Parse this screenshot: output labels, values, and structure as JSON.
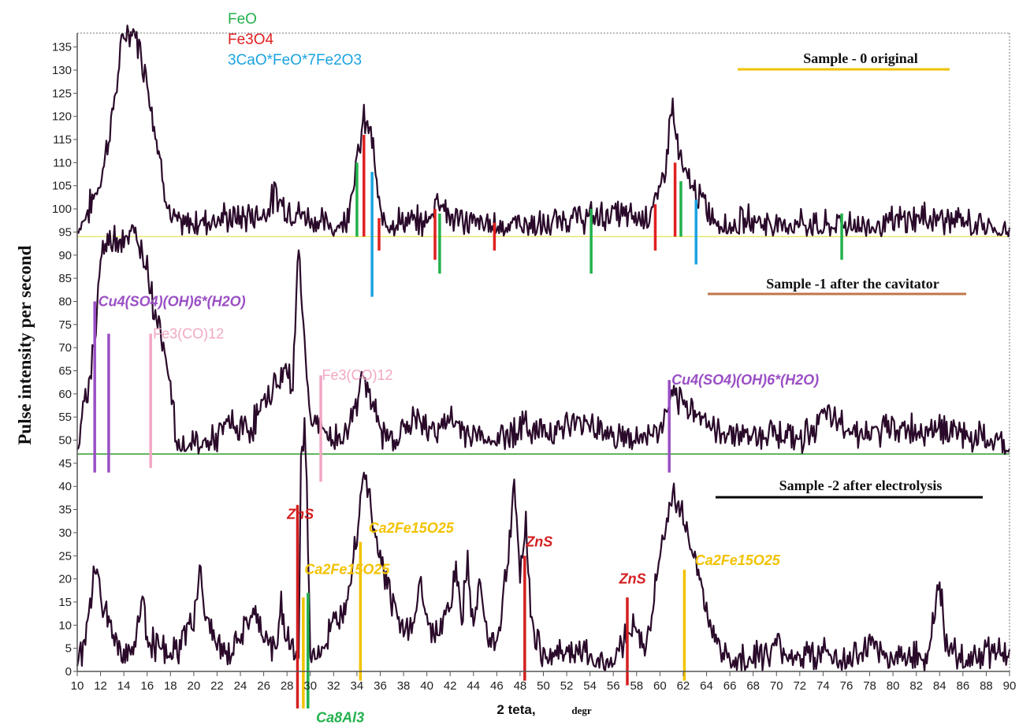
{
  "chart_data": {
    "type": "line",
    "xlabel": "2 teta,",
    "xlabel_unit": "degr",
    "ylabel": "Pulse intensity per second",
    "xlim": [
      10,
      90
    ],
    "ylim": [
      0,
      138
    ],
    "x_ticks": [
      10,
      12,
      14,
      16,
      18,
      20,
      22,
      24,
      26,
      28,
      30,
      32,
      34,
      36,
      38,
      40,
      42,
      44,
      46,
      48,
      50,
      52,
      54,
      56,
      58,
      60,
      62,
      64,
      66,
      68,
      70,
      72,
      74,
      76,
      78,
      80,
      82,
      84,
      86,
      88,
      90
    ],
    "x_tick_labels": [
      "10",
      "12",
      "14",
      "16",
      "18",
      "20",
      "22",
      "24",
      "26",
      "28",
      "30",
      "32",
      "34",
      "36",
      "38",
      "40",
      "42",
      "44",
      "46",
      "48",
      "50",
      "52",
      "54",
      "56",
      "58",
      "60",
      "62",
      "64",
      "66",
      "68",
      "70",
      "72",
      "74",
      "76",
      "78",
      "80",
      "82",
      "84",
      "86",
      "88",
      "90"
    ],
    "y_ticks": [
      0,
      5,
      10,
      15,
      20,
      25,
      30,
      35,
      40,
      45,
      50,
      55,
      60,
      65,
      70,
      75,
      80,
      85,
      90,
      95,
      100,
      105,
      110,
      115,
      120,
      125,
      130,
      135
    ],
    "y_tick_labels": [
      "0",
      "5",
      "10",
      "15",
      "20",
      "25",
      "30",
      "35",
      "40",
      "45",
      "50",
      "55",
      "60",
      "65",
      "70",
      "75",
      "80",
      "85",
      "90",
      "95",
      "100",
      "105",
      "110",
      "115",
      "120",
      "125",
      "130",
      "135"
    ],
    "grid": false,
    "legend": {
      "position": "top-center",
      "entries": [
        {
          "label": "FeO",
          "color": "#22b14c"
        },
        {
          "label": "Fe3O4",
          "color": "#e02020"
        },
        {
          "label": "3CaO*FeO*7Fe2O3",
          "color": "#1aa3e0"
        }
      ]
    },
    "series": [
      {
        "name": "Sample - 0 original",
        "color": "#2a0a2a",
        "baseline": 94,
        "baseline_color": "#e8e870",
        "label_color": "#f2c200",
        "points": [
          [
            10,
            95
          ],
          [
            11,
            100
          ],
          [
            12,
            106
          ],
          [
            13,
            120
          ],
          [
            14,
            138
          ],
          [
            15,
            138
          ],
          [
            16,
            128
          ],
          [
            17,
            112
          ],
          [
            18,
            98
          ],
          [
            19,
            96
          ],
          [
            20,
            97
          ],
          [
            22,
            98
          ],
          [
            24,
            98
          ],
          [
            26,
            99
          ],
          [
            27,
            103
          ],
          [
            28,
            100
          ],
          [
            30,
            98
          ],
          [
            32,
            96
          ],
          [
            33,
            97
          ],
          [
            34,
            110
          ],
          [
            34.6,
            119
          ],
          [
            35.2,
            117
          ],
          [
            36,
            98
          ],
          [
            38,
            97
          ],
          [
            40,
            97
          ],
          [
            41,
            103
          ],
          [
            42,
            98
          ],
          [
            44,
            97
          ],
          [
            46,
            96
          ],
          [
            48,
            97
          ],
          [
            50,
            96
          ],
          [
            52,
            98
          ],
          [
            54,
            98
          ],
          [
            56,
            99
          ],
          [
            58,
            98
          ],
          [
            59,
            99
          ],
          [
            60,
            103
          ],
          [
            60.6,
            112
          ],
          [
            61,
            123
          ],
          [
            61.6,
            112
          ],
          [
            62,
            108
          ],
          [
            63,
            104
          ],
          [
            64,
            100
          ],
          [
            65,
            97
          ],
          [
            66,
            96
          ],
          [
            68,
            98
          ],
          [
            70,
            96
          ],
          [
            72,
            97
          ],
          [
            74,
            96
          ],
          [
            76,
            97
          ],
          [
            78,
            96
          ],
          [
            80,
            97
          ],
          [
            82,
            98
          ],
          [
            84,
            98
          ],
          [
            86,
            97
          ],
          [
            88,
            96
          ],
          [
            89,
            95
          ],
          [
            90,
            94
          ]
        ],
        "markers": [
          {
            "x": 34.0,
            "from": 94,
            "to": 110,
            "color": "#22b14c"
          },
          {
            "x": 34.6,
            "from": 94,
            "to": 116,
            "color": "#e02020"
          },
          {
            "x": 35.3,
            "from": 81,
            "to": 108,
            "color": "#1aa3e0"
          },
          {
            "x": 35.9,
            "from": 91,
            "to": 98,
            "color": "#e02020"
          },
          {
            "x": 40.7,
            "from": 89,
            "to": 100,
            "color": "#e02020"
          },
          {
            "x": 41.1,
            "from": 86,
            "to": 99,
            "color": "#22b14c"
          },
          {
            "x": 45.8,
            "from": 91,
            "to": 97,
            "color": "#e02020"
          },
          {
            "x": 54.1,
            "from": 86,
            "to": 100,
            "color": "#22b14c"
          },
          {
            "x": 59.6,
            "from": 91,
            "to": 101,
            "color": "#e02020"
          },
          {
            "x": 61.3,
            "from": 94,
            "to": 110,
            "color": "#e02020"
          },
          {
            "x": 61.8,
            "from": 94,
            "to": 106,
            "color": "#22b14c"
          },
          {
            "x": 63.1,
            "from": 88,
            "to": 102,
            "color": "#1aa3e0"
          },
          {
            "x": 75.6,
            "from": 89,
            "to": 99,
            "color": "#22b14c"
          }
        ]
      },
      {
        "name": "Sample -1 after the cavitator",
        "color": "#2a0a2a",
        "baseline": 47,
        "baseline_color": "#2e9e2e",
        "label_color": "#c0774a",
        "points": [
          [
            10,
            48
          ],
          [
            10.5,
            55
          ],
          [
            11,
            63
          ],
          [
            11.5,
            72
          ],
          [
            12,
            90
          ],
          [
            13,
            94
          ],
          [
            14,
            94
          ],
          [
            15,
            94
          ],
          [
            16,
            88
          ],
          [
            16.5,
            80
          ],
          [
            17,
            75
          ],
          [
            17.5,
            70
          ],
          [
            18,
            62
          ],
          [
            18.5,
            50
          ],
          [
            19,
            48
          ],
          [
            20,
            49
          ],
          [
            22,
            50
          ],
          [
            23,
            54
          ],
          [
            24,
            52
          ],
          [
            25,
            53
          ],
          [
            26,
            58
          ],
          [
            27,
            62
          ],
          [
            28,
            65
          ],
          [
            28.5,
            62
          ],
          [
            29,
            93
          ],
          [
            29.5,
            70
          ],
          [
            30,
            55
          ],
          [
            31,
            52
          ],
          [
            32,
            50
          ],
          [
            33,
            51
          ],
          [
            34,
            58
          ],
          [
            34.5,
            66
          ],
          [
            35,
            60
          ],
          [
            36,
            52
          ],
          [
            37,
            50
          ],
          [
            38,
            52
          ],
          [
            39,
            55
          ],
          [
            40,
            52
          ],
          [
            42,
            54
          ],
          [
            44,
            51
          ],
          [
            46,
            50
          ],
          [
            48,
            53
          ],
          [
            50,
            52
          ],
          [
            52,
            53
          ],
          [
            54,
            54
          ],
          [
            56,
            51
          ],
          [
            58,
            50
          ],
          [
            60,
            52
          ],
          [
            61,
            59
          ],
          [
            62,
            57
          ],
          [
            63,
            57
          ],
          [
            64,
            54
          ],
          [
            65,
            51
          ],
          [
            66,
            52
          ],
          [
            68,
            51
          ],
          [
            70,
            52
          ],
          [
            72,
            50
          ],
          [
            74,
            55
          ],
          [
            76,
            53
          ],
          [
            78,
            51
          ],
          [
            80,
            53
          ],
          [
            82,
            52
          ],
          [
            84,
            53
          ],
          [
            86,
            51
          ],
          [
            88,
            50
          ],
          [
            90,
            48
          ]
        ],
        "annotations": [
          {
            "text": "Cu4(SO4)(OH)6*(H2O)",
            "x": 11.8,
            "y": 79,
            "color": "#9a4fc4",
            "italic": true
          },
          {
            "text": "Fe3(CO)12",
            "x": 16.5,
            "y": 72,
            "color": "#f2a7c4"
          },
          {
            "text": "Fe3(CO)12",
            "x": 31.0,
            "y": 63,
            "color": "#f2a7c4"
          },
          {
            "text": "Cu4(SO4)(OH)6*(H2O)",
            "x": 61.0,
            "y": 62,
            "color": "#9a4fc4",
            "italic": true
          }
        ],
        "markers": [
          {
            "x": 11.5,
            "from": 43,
            "to": 80,
            "color": "#9a4fc4"
          },
          {
            "x": 12.7,
            "from": 43,
            "to": 73,
            "color": "#9a4fc4"
          },
          {
            "x": 16.3,
            "from": 44,
            "to": 73,
            "color": "#f2a7c4"
          },
          {
            "x": 30.9,
            "from": 41,
            "to": 64,
            "color": "#f2a7c4"
          },
          {
            "x": 60.8,
            "from": 43,
            "to": 63,
            "color": "#9a4fc4"
          }
        ]
      },
      {
        "name": "Sample -2 after electrolysis",
        "color": "#2a0a2a",
        "baseline": 0,
        "label_color": "#000000",
        "points": [
          [
            10,
            2
          ],
          [
            10.5,
            5
          ],
          [
            11,
            12
          ],
          [
            11.5,
            22
          ],
          [
            12,
            18
          ],
          [
            12.5,
            12
          ],
          [
            13,
            8
          ],
          [
            14,
            4
          ],
          [
            15,
            6
          ],
          [
            15.5,
            16
          ],
          [
            16,
            8
          ],
          [
            17,
            5
          ],
          [
            18,
            3
          ],
          [
            19,
            6
          ],
          [
            20,
            12
          ],
          [
            20.5,
            22
          ],
          [
            21,
            12
          ],
          [
            22,
            6
          ],
          [
            23,
            3
          ],
          [
            24,
            8
          ],
          [
            25,
            12
          ],
          [
            26,
            8
          ],
          [
            27,
            4
          ],
          [
            27.5,
            14
          ],
          [
            28,
            8
          ],
          [
            29,
            2
          ],
          [
            29.2,
            45
          ],
          [
            29.5,
            52
          ],
          [
            29.7,
            40
          ],
          [
            30,
            3
          ],
          [
            31,
            5
          ],
          [
            32,
            10
          ],
          [
            33,
            15
          ],
          [
            34,
            30
          ],
          [
            34.6,
            45
          ],
          [
            35,
            38
          ],
          [
            36,
            25
          ],
          [
            37,
            15
          ],
          [
            38,
            8
          ],
          [
            39,
            12
          ],
          [
            39.5,
            20
          ],
          [
            40,
            10
          ],
          [
            41,
            8
          ],
          [
            42,
            15
          ],
          [
            42.5,
            22
          ],
          [
            43,
            10
          ],
          [
            43.5,
            25
          ],
          [
            44,
            8
          ],
          [
            44.5,
            20
          ],
          [
            45,
            10
          ],
          [
            46,
            6
          ],
          [
            47,
            25
          ],
          [
            47.5,
            41
          ],
          [
            48,
            20
          ],
          [
            48.5,
            32
          ],
          [
            49,
            10
          ],
          [
            50,
            3
          ],
          [
            52,
            5
          ],
          [
            54,
            3
          ],
          [
            56,
            2
          ],
          [
            57,
            8
          ],
          [
            58,
            10
          ],
          [
            58.5,
            4
          ],
          [
            59,
            8
          ],
          [
            60,
            25
          ],
          [
            61,
            38
          ],
          [
            62,
            34
          ],
          [
            63,
            25
          ],
          [
            64,
            12
          ],
          [
            65,
            6
          ],
          [
            66,
            2
          ],
          [
            68,
            3
          ],
          [
            70,
            5
          ],
          [
            72,
            3
          ],
          [
            74,
            4
          ],
          [
            76,
            2
          ],
          [
            78,
            5
          ],
          [
            80,
            3
          ],
          [
            82,
            4
          ],
          [
            83,
            3
          ],
          [
            84,
            20
          ],
          [
            84.5,
            5
          ],
          [
            86,
            3
          ],
          [
            88,
            4
          ],
          [
            89,
            5
          ],
          [
            90,
            4
          ]
        ],
        "annotations": [
          {
            "text": "ZnS",
            "x": 28.0,
            "y": 33,
            "color": "#d41f1f",
            "italic": true
          },
          {
            "text": "Ca2Fe15O25",
            "x": 35.0,
            "y": 30,
            "color": "#f2c200",
            "italic": true
          },
          {
            "text": "Ca2Fe15O25",
            "x": 29.5,
            "y": 21,
            "color": "#f2c200",
            "italic": true
          },
          {
            "text": "Ca8Al3",
            "x": 30.5,
            "y": -11,
            "color": "#22b14c",
            "italic": true
          },
          {
            "text": "ZnS",
            "x": 48.5,
            "y": 27,
            "color": "#d41f1f",
            "italic": true
          },
          {
            "text": "ZnS",
            "x": 56.5,
            "y": 19,
            "color": "#d41f1f",
            "italic": true
          },
          {
            "text": "Ca2Fe15O25",
            "x": 63.0,
            "y": 23,
            "color": "#f2c200",
            "italic": true
          }
        ],
        "markers": [
          {
            "x": 28.9,
            "from": -8,
            "to": 36,
            "color": "#d41f1f"
          },
          {
            "x": 29.4,
            "from": -8,
            "to": 16,
            "color": "#f2c200"
          },
          {
            "x": 29.8,
            "from": -8,
            "to": 17,
            "color": "#22b14c"
          },
          {
            "x": 34.3,
            "from": -2,
            "to": 28,
            "color": "#f2c200"
          },
          {
            "x": 48.4,
            "from": -2,
            "to": 25,
            "color": "#d41f1f"
          },
          {
            "x": 57.2,
            "from": -3,
            "to": 16,
            "color": "#d41f1f"
          },
          {
            "x": 62.1,
            "from": -2,
            "to": 22,
            "color": "#f2c200"
          }
        ]
      }
    ]
  }
}
